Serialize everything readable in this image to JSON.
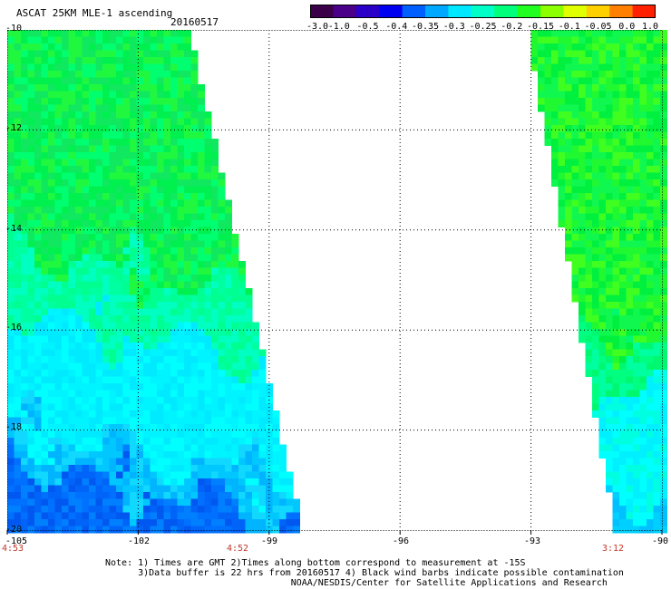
{
  "header": {
    "title": "ASCAT 25KM MLE-1 ascending",
    "date": "20160517"
  },
  "colorbar": {
    "colors": [
      "#3a0048",
      "#4a0088",
      "#2a00c8",
      "#0000f0",
      "#0060ff",
      "#00a8ff",
      "#00e8ff",
      "#00ffc8",
      "#00ff7a",
      "#20ff20",
      "#8cff00",
      "#e0ff00",
      "#ffd000",
      "#ff8000",
      "#ff2000"
    ],
    "ticks": [
      "-3.0",
      "-1.0",
      "-0.5",
      "-0.4",
      "-0.35",
      "-0.3",
      "-0.25",
      "-0.2",
      "-0.15",
      "-0.1",
      "-0.05",
      "0.0",
      "1.0"
    ]
  },
  "map": {
    "lat_range": [
      -20,
      -10
    ],
    "lon_range": [
      -105,
      -90
    ],
    "lat_labels": [
      "-10",
      "-12",
      "-14",
      "-16",
      "-18",
      "-20"
    ],
    "lon_labels": [
      "-105",
      "-102",
      "-99",
      "-96",
      "-93",
      "-90"
    ],
    "grid": true,
    "swaths": [
      {
        "name": "west",
        "time": "4:53",
        "time2": "4:52"
      },
      {
        "name": "east",
        "time": "3:12"
      }
    ]
  },
  "notes": [
    "Note: 1) Times are GMT 2)Times along bottom correspond to measurement at -15S",
    "      3)Data buffer is 22 hrs from 20160517 4) Black wind barbs indicate possible contamination",
    "                                  NOAA/NESDIS/Center for Satellite Applications and Research"
  ]
}
